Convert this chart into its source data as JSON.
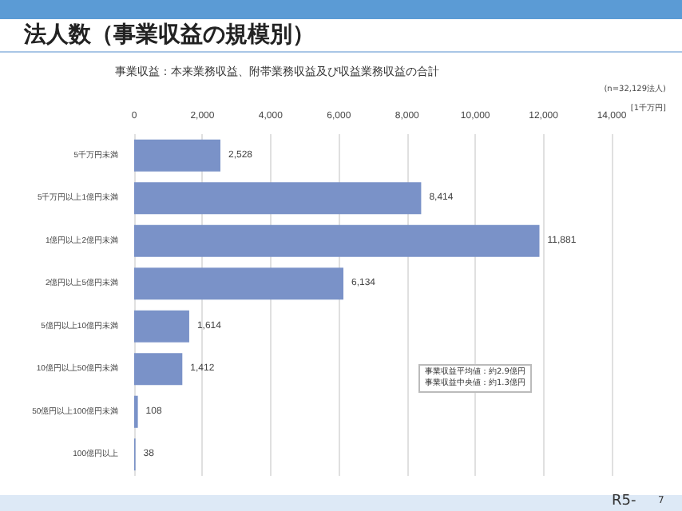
{
  "chart_data": {
    "type": "bar",
    "orientation": "horizontal",
    "title": "法人数（事業収益の規模別）",
    "subtitle": "事業収益：本来業務収益、附帯業務収益及び収益業務収益の合計",
    "categories": [
      "5千万円未満",
      "5千万円以上1億円未満",
      "1億円以上2億円未満",
      "2億円以上5億円未満",
      "5億円以上10億円未満",
      "10億円以上50億円未満",
      "50億円以上100億円未満",
      "100億円以上"
    ],
    "values": [
      2528,
      8414,
      11881,
      6134,
      1614,
      1412,
      108,
      38
    ],
    "value_labels": [
      "2,528",
      "8,414",
      "11,881",
      "6,134",
      "1,614",
      "1,412",
      "108",
      "38"
    ],
    "color": "#7a92c8",
    "xlim": [
      0,
      14000
    ],
    "xticks": [
      0,
      {
        "value": 2000,
        "label": "2,000"
      },
      {
        "value": 4000,
        "label": "4,000"
      },
      {
        "value": 6000,
        "label": "6,000"
      },
      {
        "value": 8000,
        "label": "8,000"
      },
      {
        "value": 10000,
        "label": "10,000"
      },
      {
        "value": 12000,
        "label": "12,000"
      },
      {
        "value": 14000,
        "label": "14,000"
      }
    ],
    "grid": "x",
    "annotations": [
      "(n=32,129法人)",
      "[1千万円]",
      "事業収益平均値：約2.9億円",
      "事業収益中央値：約1.3億円",
      "R5-",
      "7"
    ]
  }
}
